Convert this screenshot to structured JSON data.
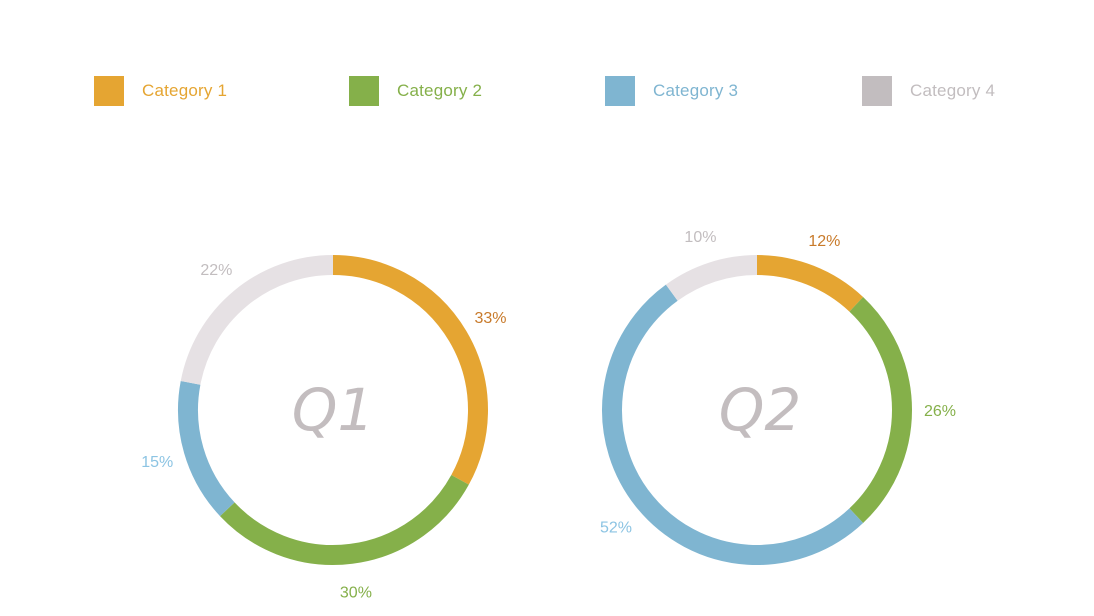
{
  "colors": {
    "category_1": "#e5a532",
    "category_2": "#85b04a",
    "category_3": "#7fb5d1",
    "category_4": "#c2bdbf",
    "category_4_ring": "#e6e1e4",
    "center_label": "#c3bdbf"
  },
  "legend": [
    {
      "label": "Category 1",
      "color": "#e5a532"
    },
    {
      "label": "Category 2",
      "color": "#85b04a"
    },
    {
      "label": "Category 3",
      "color": "#7fb5d1"
    },
    {
      "label": "Category 4",
      "color": "#c2bdbf"
    }
  ],
  "chart_data": [
    {
      "type": "pie",
      "title": "Q1",
      "categories": [
        "Category 1",
        "Category 2",
        "Category 3",
        "Category 4"
      ],
      "values": [
        33,
        30,
        15,
        22
      ],
      "labels": [
        "33%",
        "30%",
        "15%",
        "22%"
      ],
      "label_colors": [
        "#c87a2a",
        "#85b04a",
        "#8cc4e3",
        "#c2bdbf"
      ]
    },
    {
      "type": "pie",
      "title": "Q2",
      "categories": [
        "Category 1",
        "Category 2",
        "Category 3",
        "Category 4"
      ],
      "values": [
        12,
        26,
        52,
        10
      ],
      "labels": [
        "12%",
        "26%",
        "52%",
        "10%"
      ],
      "label_colors": [
        "#c87a2a",
        "#85b04a",
        "#8cc4e3",
        "#c2bdbf"
      ]
    }
  ]
}
